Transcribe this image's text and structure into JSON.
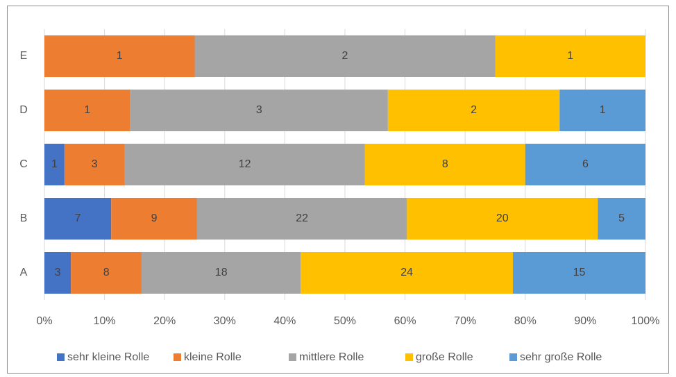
{
  "chart_data": {
    "type": "bar",
    "orientation": "horizontal",
    "stacked": "percent",
    "categories": [
      "A",
      "B",
      "C",
      "D",
      "E"
    ],
    "series": [
      {
        "name": "sehr kleine Rolle",
        "color": "#4472c4",
        "values": [
          3,
          7,
          1,
          null,
          null
        ]
      },
      {
        "name": "kleine Rolle",
        "color": "#ed7d31",
        "values": [
          8,
          9,
          3,
          1,
          1
        ]
      },
      {
        "name": "mittlere Rolle",
        "color": "#a5a5a5",
        "values": [
          18,
          22,
          12,
          3,
          2
        ]
      },
      {
        "name": "große Rolle",
        "color": "#ffc000",
        "values": [
          24,
          20,
          8,
          2,
          1
        ]
      },
      {
        "name": "sehr große Rolle",
        "color": "#5b9bd5",
        "values": [
          15,
          5,
          6,
          1,
          null
        ]
      }
    ],
    "xlim": [
      0,
      100
    ],
    "xticks": [
      {
        "value": 0,
        "label": "0%"
      },
      {
        "value": 10,
        "label": "10%"
      },
      {
        "value": 20,
        "label": "20%"
      },
      {
        "value": 30,
        "label": "30%"
      },
      {
        "value": 40,
        "label": "40%"
      },
      {
        "value": 50,
        "label": "50%"
      },
      {
        "value": 60,
        "label": "60%"
      },
      {
        "value": 70,
        "label": "70%"
      },
      {
        "value": 80,
        "label": "80%"
      },
      {
        "value": 90,
        "label": "90%"
      },
      {
        "value": 100,
        "label": "100%"
      }
    ],
    "grid": true,
    "legend": "bottom"
  }
}
